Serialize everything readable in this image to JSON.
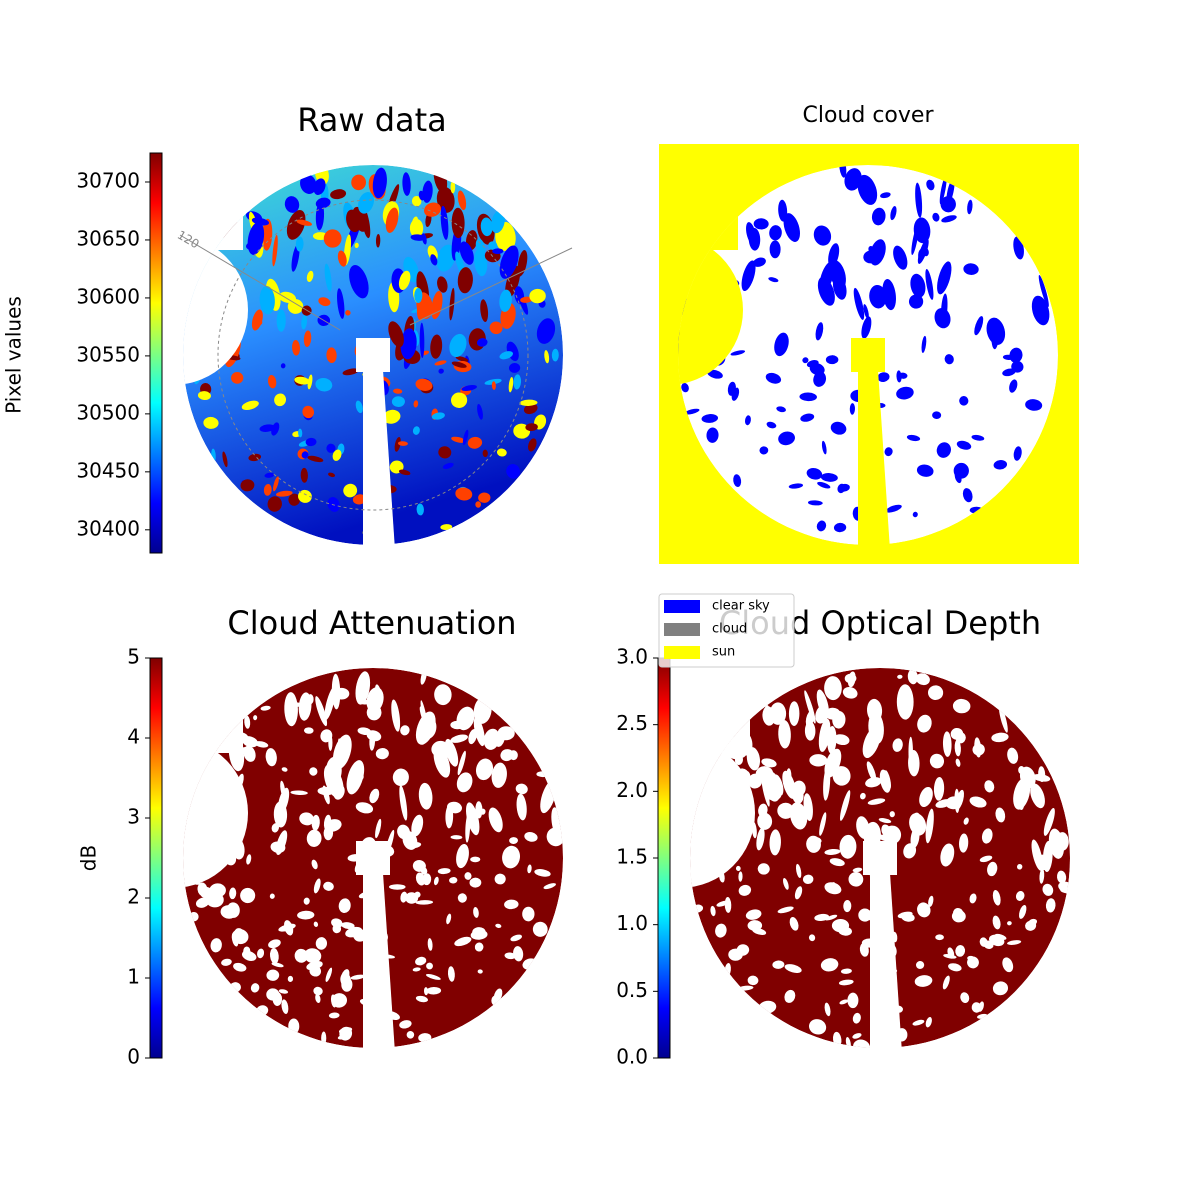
{
  "chart_data": [
    {
      "type": "image",
      "title": "Raw data",
      "colorbar_label": "Pixel values",
      "ylim": [
        30380,
        30725
      ],
      "yticks": [
        30400,
        30450,
        30500,
        30550,
        30600,
        30650,
        30700
      ],
      "colormap": "jet",
      "annotation": "120"
    },
    {
      "type": "mask",
      "title": "Cloud cover",
      "background": "#ffff00",
      "legend": [
        {
          "name": "clear sky",
          "color": "#0000ff"
        },
        {
          "name": "cloud",
          "color": "#808080"
        },
        {
          "name": "sun",
          "color": "#ffff00"
        }
      ]
    },
    {
      "type": "image",
      "title": "Cloud Attenuation",
      "colorbar_label": "dB",
      "ylim": [
        0,
        5
      ],
      "yticks": [
        0,
        1,
        2,
        3,
        4,
        5
      ],
      "colormap": "jet",
      "fill": "#800000"
    },
    {
      "type": "image",
      "title": "Cloud Optical Depth",
      "ylim": [
        0,
        3
      ],
      "yticks": [
        {
          "value": 0,
          "label": "0.0"
        },
        0.5,
        {
          "value": 1,
          "label": "1.0"
        },
        1.5,
        {
          "value": 2,
          "label": "2.0"
        },
        2.5,
        {
          "value": 3,
          "label": "3.0"
        }
      ],
      "colormap": "jet",
      "fill": "#800000"
    }
  ]
}
